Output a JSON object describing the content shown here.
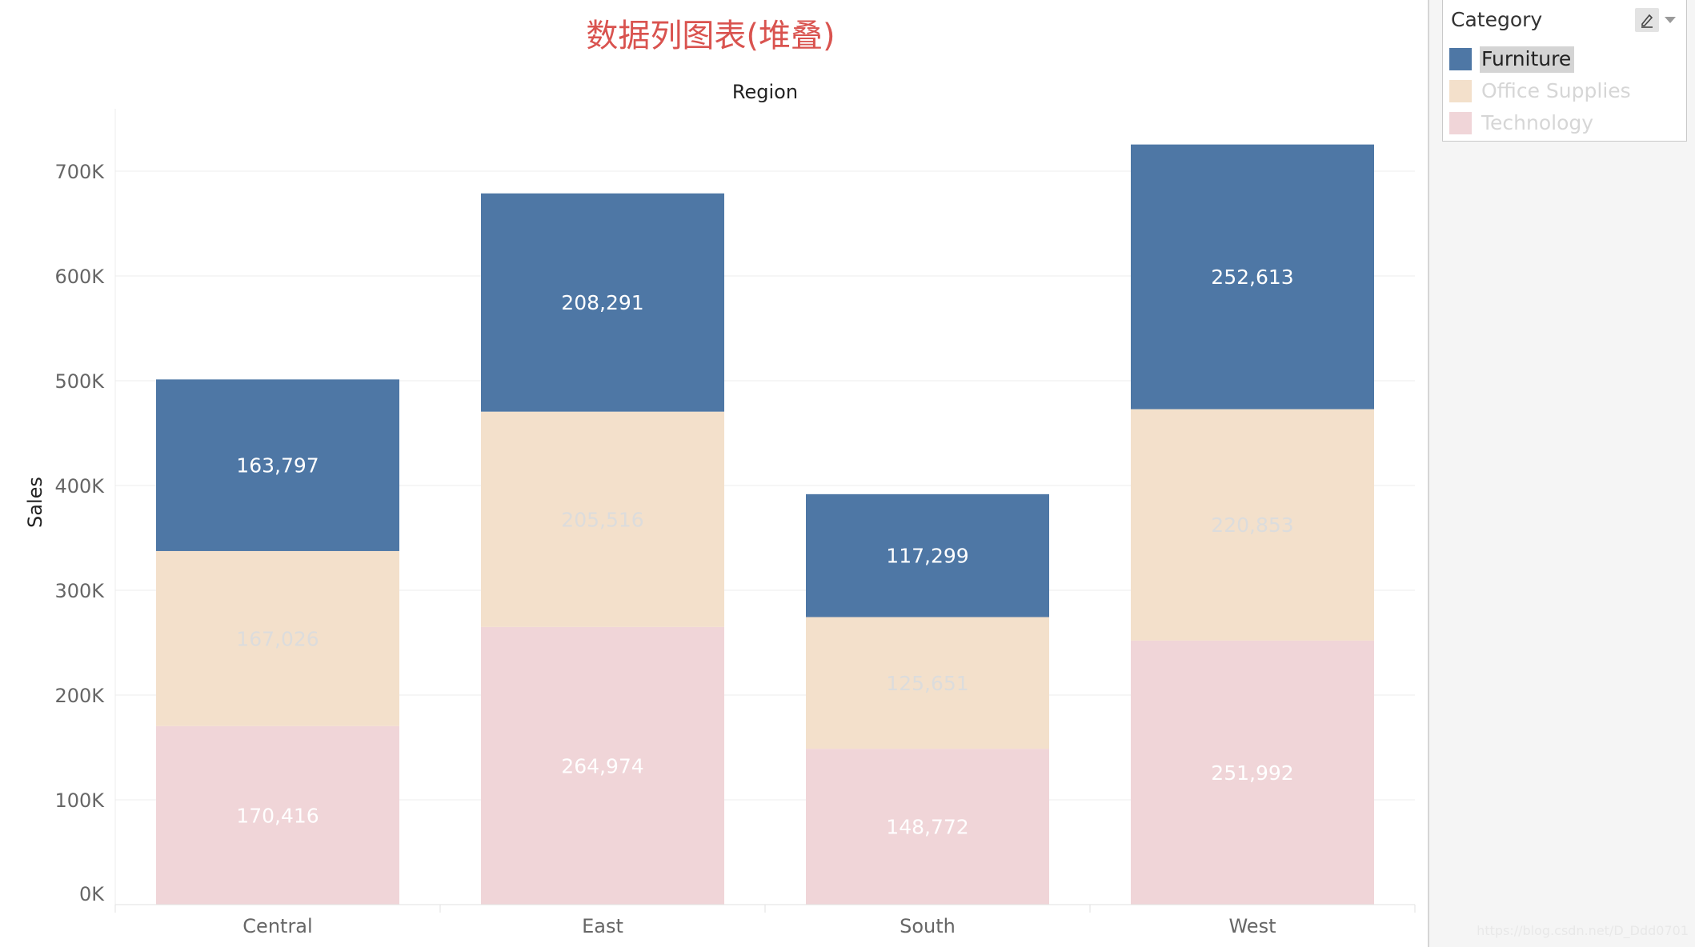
{
  "chart_data": {
    "type": "bar",
    "stacked": true,
    "title": "数据列图表(堆叠)",
    "column_header": "Region",
    "xlabel": "",
    "ylabel": "Sales",
    "ylim": [
      0,
      700000
    ],
    "y_ticks": [
      {
        "value": 0,
        "label": "0K"
      },
      {
        "value": 100000,
        "label": "100K"
      },
      {
        "value": 200000,
        "label": "200K"
      },
      {
        "value": 300000,
        "label": "300K"
      },
      {
        "value": 400000,
        "label": "400K"
      },
      {
        "value": 500000,
        "label": "500K"
      },
      {
        "value": 600000,
        "label": "600K"
      },
      {
        "value": 700000,
        "label": "700K"
      }
    ],
    "grid": true,
    "legend_position": "right",
    "categories": [
      "Central",
      "East",
      "South",
      "West"
    ],
    "series": [
      {
        "name": "Technology",
        "color": "#f0d5d8",
        "label_color": "#ffffff",
        "values": [
          170416,
          264974,
          148772,
          251992
        ],
        "labels": [
          "170,416",
          "264,974",
          "148,772",
          "251,992"
        ]
      },
      {
        "name": "Office Supplies",
        "color": "#f3e0cb",
        "label_color": "#dcdcdc",
        "values": [
          167026,
          205516,
          125651,
          220853
        ],
        "labels": [
          "167,026",
          "205,516",
          "125,651",
          "220,853"
        ]
      },
      {
        "name": "Furniture",
        "color": "#4e77a5",
        "label_color": "#ffffff",
        "values": [
          163797,
          208291,
          117299,
          252613
        ],
        "labels": [
          "163,797",
          "208,291",
          "117,299",
          "252,613"
        ]
      }
    ]
  },
  "legend": {
    "title": "Category",
    "menu_icon": "pencil-icon",
    "dropdown_icon": "chevron-down-icon",
    "items": [
      {
        "label": "Furniture",
        "color": "#4e77a5",
        "selected": true
      },
      {
        "label": "Office Supplies",
        "color": "#f3e0cb",
        "selected": false
      },
      {
        "label": "Technology",
        "color": "#f0d5d8",
        "selected": false
      }
    ]
  },
  "watermark": "https://blog.csdn.net/D_Ddd0701"
}
